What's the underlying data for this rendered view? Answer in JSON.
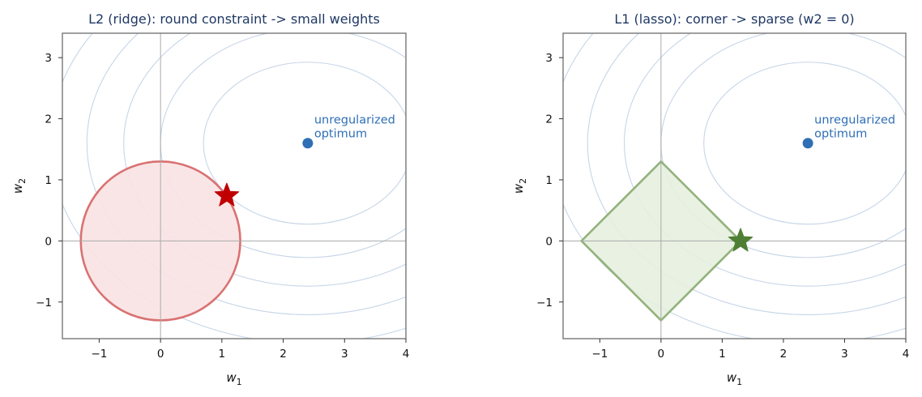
{
  "chart_data": [
    {
      "type": "line",
      "title": "L2 (ridge): round constraint -> small weights",
      "xlabel": "w",
      "xlabel_sub": "1",
      "ylabel": "w",
      "ylabel_sub": "2",
      "xlim": [
        -1.6,
        4.0
      ],
      "ylim": [
        -1.6,
        3.4
      ],
      "xticks": [
        -1,
        0,
        1,
        2,
        3,
        4
      ],
      "yticks": [
        -1,
        0,
        1,
        2,
        3
      ],
      "xtick_labels": [
        "−1",
        "0",
        "1",
        "2",
        "3",
        "4"
      ],
      "ytick_labels": [
        "−1",
        "0",
        "1",
        "2",
        "3"
      ],
      "contour_center": [
        2.4,
        1.6
      ],
      "contour_radii": [
        1.7,
        2.4,
        3.0,
        3.6,
        4.2
      ],
      "constraint": {
        "shape": "circle",
        "radius": 1.3,
        "stroke": "#d97272",
        "fill": "#f9e2e3"
      },
      "solution": {
        "x": 1.08,
        "y": 0.74,
        "color": "#c00000"
      },
      "optimum": {
        "x": 2.4,
        "y": 1.6,
        "color": "#2f6fb5",
        "label_line1": "unregularized",
        "label_line2": "optimum"
      }
    },
    {
      "type": "line",
      "title": "L1 (lasso): corner -> sparse (w2 = 0)",
      "xlabel": "w",
      "xlabel_sub": "1",
      "ylabel": "w",
      "ylabel_sub": "2",
      "xlim": [
        -1.6,
        4.0
      ],
      "ylim": [
        -1.6,
        3.4
      ],
      "xticks": [
        -1,
        0,
        1,
        2,
        3,
        4
      ],
      "yticks": [
        -1,
        0,
        1,
        2,
        3
      ],
      "xtick_labels": [
        "−1",
        "0",
        "1",
        "2",
        "3",
        "4"
      ],
      "ytick_labels": [
        "−1",
        "0",
        "1",
        "2",
        "3"
      ],
      "contour_center": [
        2.4,
        1.6
      ],
      "contour_radii": [
        1.7,
        2.4,
        3.0,
        3.6,
        4.2
      ],
      "constraint": {
        "shape": "diamond",
        "radius": 1.3,
        "stroke": "#93b27c",
        "fill": "#e6f0df"
      },
      "solution": {
        "x": 1.3,
        "y": 0.0,
        "color": "#4f7f34"
      },
      "optimum": {
        "x": 2.4,
        "y": 1.6,
        "color": "#2f6fb5",
        "label_line1": "unregularized",
        "label_line2": "optimum"
      }
    }
  ],
  "style": {
    "title_color": "#1f3864",
    "contour_color": "#c7d5e8",
    "axis_line_color": "#aaaaaa",
    "frame_color": "#777777"
  }
}
